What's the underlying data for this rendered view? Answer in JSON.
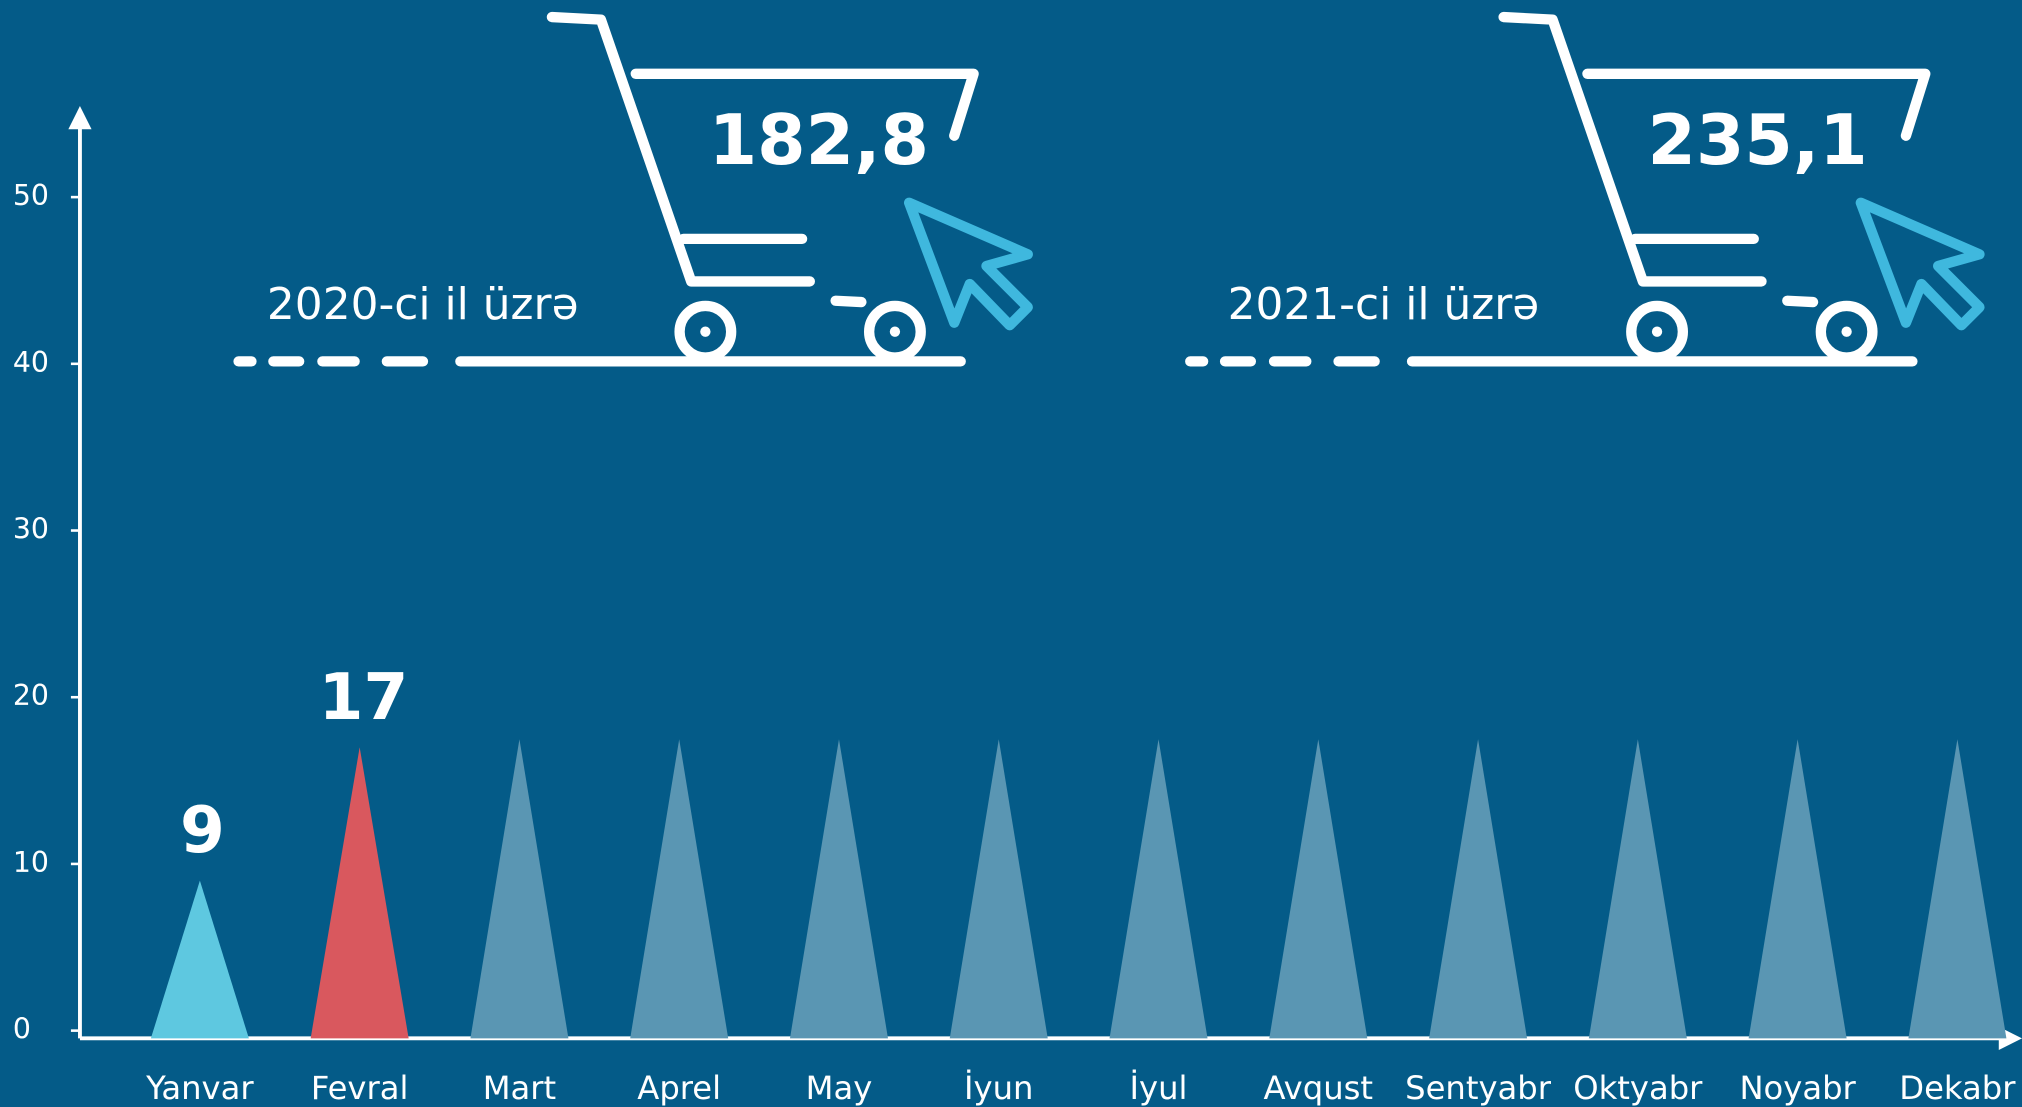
{
  "chart_data": {
    "type": "bar",
    "categories": [
      "Yanvar",
      "Fevral",
      "Mart",
      "Aprel",
      "May",
      "İyun",
      "İyul",
      "Avqust",
      "Sentyabr",
      "Oktyabr",
      "Noyabr",
      "Dekabr"
    ],
    "values": [
      9,
      17,
      null,
      null,
      null,
      null,
      null,
      null,
      null,
      null,
      null,
      null
    ],
    "colors": [
      "#5ec8e0",
      "#d9585e"
    ],
    "placeholder_color": "#5a96b3",
    "ylim": [
      0,
      55
    ],
    "yticks": [
      0,
      10,
      20,
      30,
      40,
      50
    ],
    "annotations": [
      {
        "label": "2020-ci il üzrə",
        "value": "182,8"
      },
      {
        "label": "2021-ci il üzrə",
        "value": "235,1"
      }
    ]
  }
}
